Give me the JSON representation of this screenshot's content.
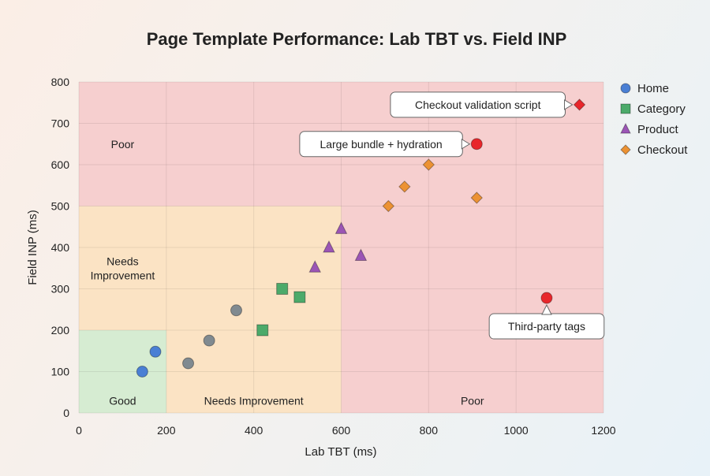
{
  "chart_data": {
    "type": "scatter",
    "title": "Page Template Performance: Lab TBT vs. Field INP",
    "xlabel": "Lab TBT (ms)",
    "ylabel": "Field INP (ms)",
    "xlim": [
      0,
      1200
    ],
    "ylim": [
      0,
      800
    ],
    "xticks": [
      0,
      200,
      400,
      600,
      800,
      1000,
      1200
    ],
    "yticks": [
      0,
      100,
      200,
      300,
      400,
      500,
      600,
      700,
      800
    ],
    "grid": true,
    "legend_position": "top-right, outside plot",
    "zones": [
      {
        "label": "Good",
        "x": [
          0,
          200
        ],
        "y": [
          0,
          200
        ],
        "color": "#d6ecd2"
      },
      {
        "label": "Needs Improvement",
        "x": [
          0,
          600
        ],
        "y": [
          0,
          500
        ],
        "color": "#fbe3c4"
      },
      {
        "label": "Poor",
        "x": [
          0,
          1200
        ],
        "y": [
          0,
          800
        ],
        "color": "#f6cfcf"
      }
    ],
    "zone_labels": [
      {
        "text": "Good",
        "x": 100,
        "y": 30
      },
      {
        "text": "Needs Improvement",
        "x": 400,
        "y": 30
      },
      {
        "text": "Poor",
        "x": 900,
        "y": 30
      },
      {
        "text": "Poor",
        "x": 100,
        "y": 650
      },
      {
        "text": "Needs\nImprovement",
        "x": 100,
        "y": 350
      }
    ],
    "series": [
      {
        "name": "Home",
        "marker": "circle",
        "color": "#4a7fd4",
        "points": [
          [
            145,
            100
          ],
          [
            175,
            148
          ]
        ]
      },
      {
        "name": "Category",
        "marker": "square",
        "color": "#4caa6a",
        "points": [
          [
            420,
            200
          ],
          [
            465,
            300
          ],
          [
            505,
            280
          ]
        ]
      },
      {
        "name": "Product",
        "marker": "triangle",
        "color": "#9b55b5",
        "points": [
          [
            540,
            352
          ],
          [
            572,
            400
          ],
          [
            600,
            445
          ],
          [
            645,
            380
          ]
        ]
      },
      {
        "name": "Checkout",
        "marker": "diamond",
        "color": "#ec9233",
        "points": [
          [
            708,
            500
          ],
          [
            745,
            547
          ],
          [
            800,
            600
          ],
          [
            910,
            520
          ]
        ]
      },
      {
        "marker": "circle",
        "color": "#808a90",
        "points": [
          [
            250,
            120
          ],
          [
            298,
            175
          ],
          [
            360,
            248
          ]
        ]
      }
    ],
    "highlights": [
      {
        "x": 910,
        "y": 650,
        "marker": "circle",
        "color": "#e8262b",
        "label": "Large bundle + hydration",
        "side": "left"
      },
      {
        "x": 1145,
        "y": 745,
        "marker": "diamond",
        "color": "#e8262b",
        "label": "Checkout validation script",
        "side": "left"
      },
      {
        "x": 1070,
        "y": 278,
        "marker": "circle",
        "color": "#e8262b",
        "label": "Third-party tags",
        "side": "below"
      }
    ]
  }
}
